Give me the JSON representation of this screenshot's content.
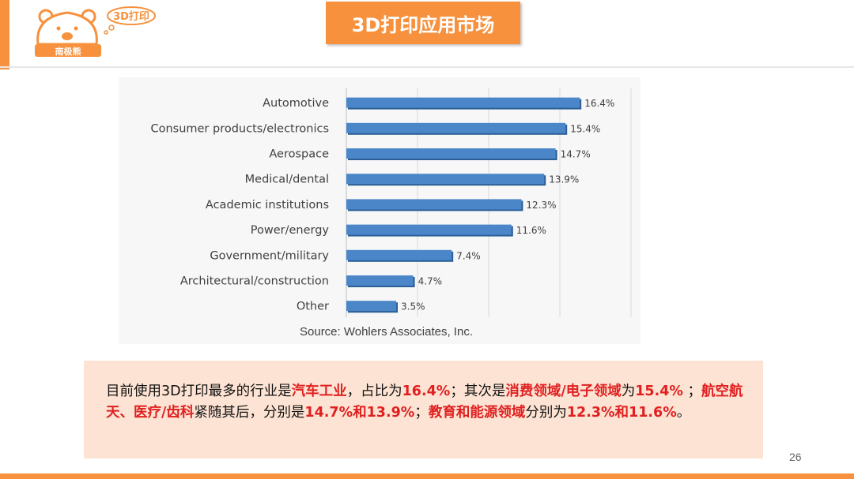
{
  "header": {
    "title": "3D打印应用市场",
    "logo": {
      "badge_text": "3D打印",
      "banner_text": "南极熊",
      "icon": "polar-bear-icon"
    }
  },
  "chart_data": {
    "type": "bar",
    "orientation": "horizontal",
    "categories": [
      "Automotive",
      "Consumer products/electronics",
      "Aerospace",
      "Medical/dental",
      "Academic institutions",
      "Power/energy",
      "Government/military",
      "Architectural/construction",
      "Other"
    ],
    "values": [
      16.4,
      15.4,
      14.7,
      13.9,
      12.3,
      11.6,
      7.4,
      4.7,
      3.5
    ],
    "value_labels": [
      "16.4%",
      "15.4%",
      "14.7%",
      "13.9%",
      "12.3%",
      "11.6%",
      "7.4%",
      "4.7%",
      "3.5%"
    ],
    "xlim": [
      0,
      20
    ],
    "grid": true,
    "bar_color": "#4a86c8",
    "source": "Source: Wohlers Associates, Inc."
  },
  "summary": {
    "segments": [
      {
        "text": "目前使用3D打印最多的行业是",
        "hl": false
      },
      {
        "text": "汽车工业",
        "hl": true
      },
      {
        "text": "，占比为",
        "hl": false
      },
      {
        "text": "16.4%",
        "hl": true
      },
      {
        "text": "；其次是",
        "hl": false
      },
      {
        "text": "消费领域/电子领域",
        "hl": true
      },
      {
        "text": "为",
        "hl": false
      },
      {
        "text": "15.4%",
        "hl": true
      },
      {
        "text": " ；",
        "hl": false
      },
      {
        "text": "航空航天、医疗/齿科",
        "hl": true
      },
      {
        "text": "紧随其后，分别是",
        "hl": false
      },
      {
        "text": "14.7%和13.9%",
        "hl": true
      },
      {
        "text": "；",
        "hl": false
      },
      {
        "text": "教育和能源领域",
        "hl": true
      },
      {
        "text": "分别为",
        "hl": false
      },
      {
        "text": "12.3%和11.6%",
        "hl": true
      },
      {
        "text": "。",
        "hl": false
      }
    ]
  },
  "footer": {
    "page_number": "26"
  },
  "colors": {
    "accent": "#f7913d",
    "summary_bg": "#fde3d3",
    "highlight": "#e02020"
  }
}
